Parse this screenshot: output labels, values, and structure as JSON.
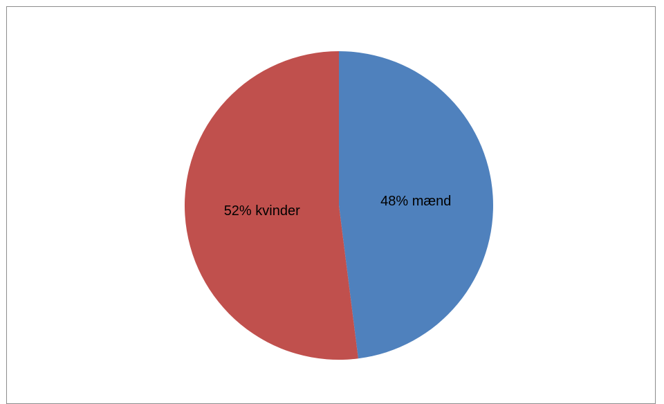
{
  "chart_data": {
    "type": "pie",
    "slices": [
      {
        "label": "48% mænd",
        "value": 48,
        "color": "#4f81bd"
      },
      {
        "label": "52% kvinder",
        "value": 52,
        "color": "#c0504d"
      }
    ],
    "start_angle_deg": 0,
    "direction": "clockwise"
  }
}
